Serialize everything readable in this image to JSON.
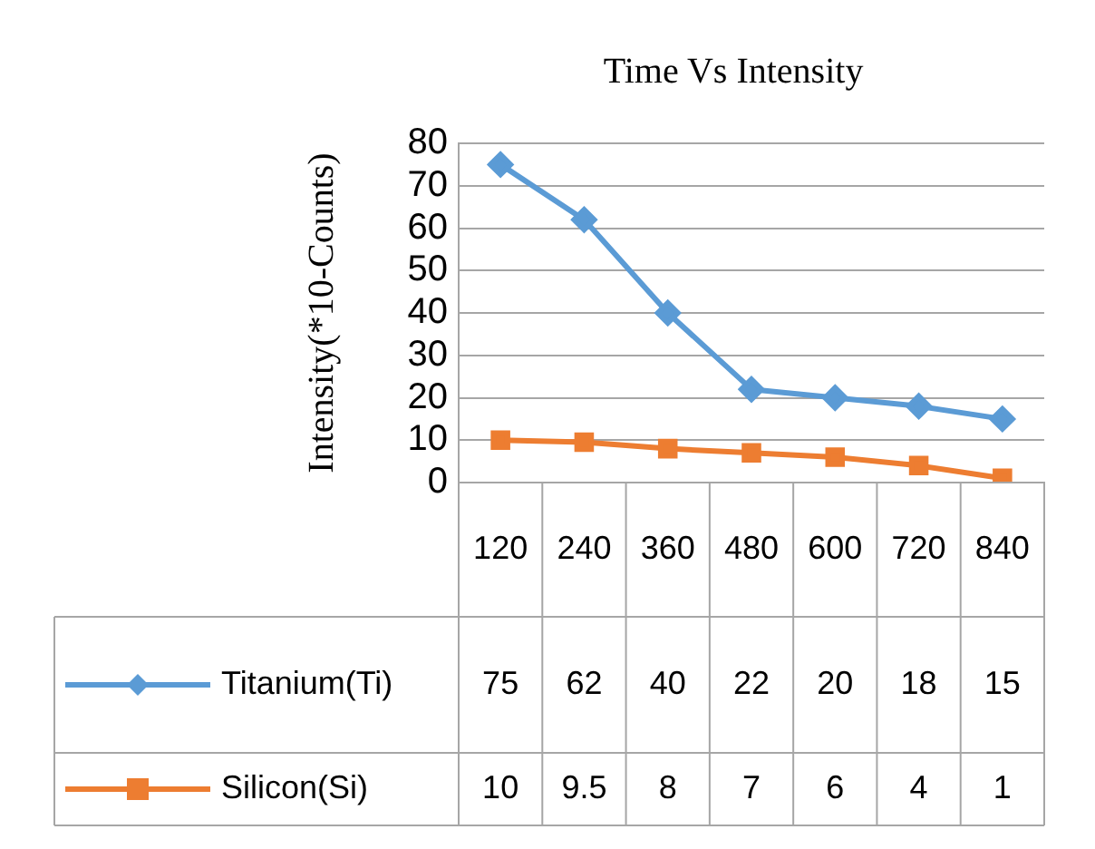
{
  "chart_data": {
    "type": "line",
    "title": "Time Vs Intensity",
    "ylabel": "Intensity(*10-Counts)",
    "categories": [
      "120",
      "240",
      "360",
      "480",
      "600",
      "720",
      "840"
    ],
    "series": [
      {
        "name": "Titanium(Ti)",
        "color": "#5b9bd5",
        "marker": "diamond",
        "values": [
          75,
          62,
          40,
          22,
          20,
          18,
          15
        ]
      },
      {
        "name": "Silicon(Si)",
        "color": "#ed7d31",
        "marker": "square",
        "values": [
          10,
          9.5,
          8,
          7,
          6,
          4,
          1
        ]
      }
    ],
    "ylim": [
      0,
      80
    ],
    "yticks": [
      0,
      10,
      20,
      30,
      40,
      50,
      60,
      70,
      80
    ],
    "grid": "y",
    "data_labels": true,
    "legend": "left"
  }
}
